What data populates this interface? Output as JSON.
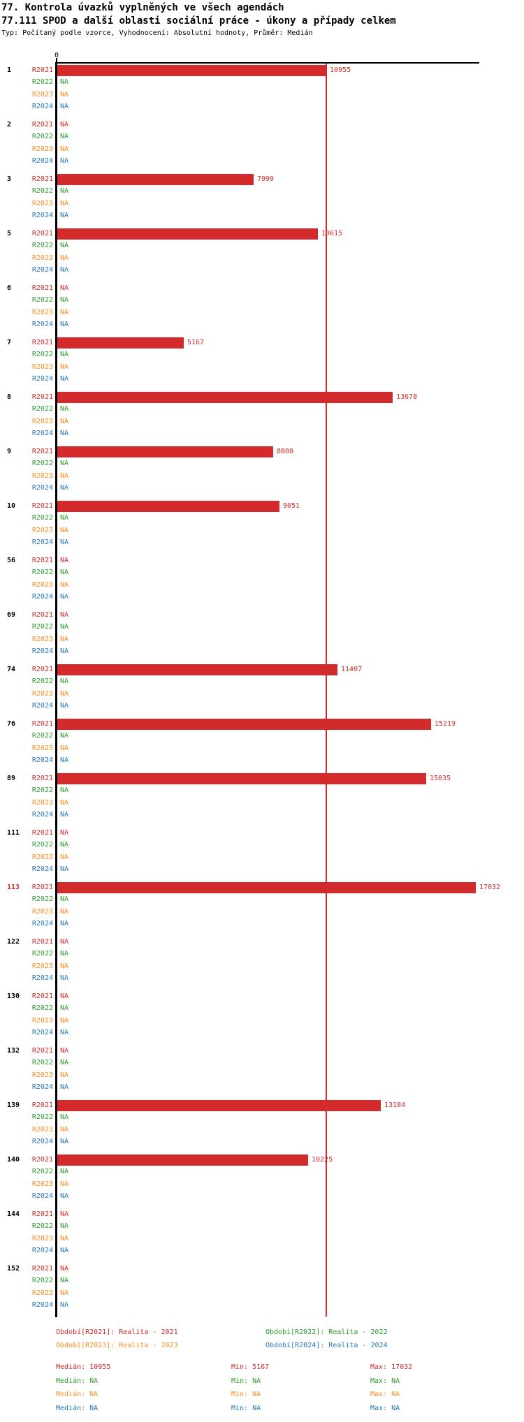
{
  "title1": "77. Kontrola úvazků vyplněných ve všech agendách",
  "title2": "77.111 SPOD a další oblasti sociální práce - úkony a případy celkem",
  "meta": "Typ: Počítaný podle vzorce, Vyhodnocení: Absolutní hodnoty, Průměr: Medián",
  "colors": {
    "R2021": "#d32b2b",
    "R2022": "#2d9e2d",
    "R2023": "#ff8c1e",
    "R2024": "#2878b8",
    "axis": "#000000",
    "median_line": "#d32b2b",
    "highlight_group_label": "#d32b2b"
  },
  "axis": {
    "zero_label": "0"
  },
  "chart_data": {
    "type": "bar",
    "orientation": "horizontal",
    "title": "77.111 SPOD a další oblasti sociální práce - úkony a případy celkem",
    "series_years": [
      "R2021",
      "R2022",
      "R2023",
      "R2024"
    ],
    "xlim": [
      0,
      17200
    ],
    "x_axis_ticks": [
      "0"
    ],
    "grid": false,
    "median_line_value": 10955,
    "na_text": "NA",
    "groups": [
      {
        "label": "1",
        "highlight": false,
        "R2021": 10955,
        "R2022": "NA",
        "R2023": "NA",
        "R2024": "NA"
      },
      {
        "label": "2",
        "highlight": false,
        "R2021": "NA",
        "R2022": "NA",
        "R2023": "NA",
        "R2024": "NA"
      },
      {
        "label": "3",
        "highlight": false,
        "R2021": 7999,
        "R2022": "NA",
        "R2023": "NA",
        "R2024": "NA"
      },
      {
        "label": "5",
        "highlight": false,
        "R2021": 10615,
        "R2022": "NA",
        "R2023": "NA",
        "R2024": "NA"
      },
      {
        "label": "6",
        "highlight": false,
        "R2021": "NA",
        "R2022": "NA",
        "R2023": "NA",
        "R2024": "NA"
      },
      {
        "label": "7",
        "highlight": false,
        "R2021": 5167,
        "R2022": "NA",
        "R2023": "NA",
        "R2024": "NA"
      },
      {
        "label": "8",
        "highlight": false,
        "R2021": 13678,
        "R2022": "NA",
        "R2023": "NA",
        "R2024": "NA"
      },
      {
        "label": "9",
        "highlight": false,
        "R2021": 8808,
        "R2022": "NA",
        "R2023": "NA",
        "R2024": "NA"
      },
      {
        "label": "10",
        "highlight": false,
        "R2021": 9051,
        "R2022": "NA",
        "R2023": "NA",
        "R2024": "NA"
      },
      {
        "label": "56",
        "highlight": false,
        "R2021": "NA",
        "R2022": "NA",
        "R2023": "NA",
        "R2024": "NA"
      },
      {
        "label": "69",
        "highlight": false,
        "R2021": "NA",
        "R2022": "NA",
        "R2023": "NA",
        "R2024": "NA"
      },
      {
        "label": "74",
        "highlight": false,
        "R2021": 11407,
        "R2022": "NA",
        "R2023": "NA",
        "R2024": "NA"
      },
      {
        "label": "76",
        "highlight": false,
        "R2021": 15219,
        "R2022": "NA",
        "R2023": "NA",
        "R2024": "NA"
      },
      {
        "label": "89",
        "highlight": false,
        "R2021": 15035,
        "R2022": "NA",
        "R2023": "NA",
        "R2024": "NA"
      },
      {
        "label": "111",
        "highlight": false,
        "R2021": "NA",
        "R2022": "NA",
        "R2023": "NA",
        "R2024": "NA"
      },
      {
        "label": "113",
        "highlight": true,
        "R2021": 17032,
        "R2022": "NA",
        "R2023": "NA",
        "R2024": "NA"
      },
      {
        "label": "122",
        "highlight": false,
        "R2021": "NA",
        "R2022": "NA",
        "R2023": "NA",
        "R2024": "NA"
      },
      {
        "label": "130",
        "highlight": false,
        "R2021": "NA",
        "R2022": "NA",
        "R2023": "NA",
        "R2024": "NA"
      },
      {
        "label": "132",
        "highlight": false,
        "R2021": "NA",
        "R2022": "NA",
        "R2023": "NA",
        "R2024": "NA"
      },
      {
        "label": "139",
        "highlight": false,
        "R2021": 13184,
        "R2022": "NA",
        "R2023": "NA",
        "R2024": "NA"
      },
      {
        "label": "140",
        "highlight": false,
        "R2021": 10225,
        "R2022": "NA",
        "R2023": "NA",
        "R2024": "NA"
      },
      {
        "label": "144",
        "highlight": false,
        "R2021": "NA",
        "R2022": "NA",
        "R2023": "NA",
        "R2024": "NA"
      },
      {
        "label": "152",
        "highlight": false,
        "R2021": "NA",
        "R2022": "NA",
        "R2023": "NA",
        "R2024": "NA"
      }
    ]
  },
  "legend": {
    "items": [
      {
        "year": "R2021",
        "label": "Období[R2021]: Realita - 2021"
      },
      {
        "year": "R2022",
        "label": "Období[R2022]: Realita - 2022"
      },
      {
        "year": "R2023",
        "label": "Období[R2023]: Realita - 2023"
      },
      {
        "year": "R2024",
        "label": "Období[R2024]: Realita - 2024"
      }
    ]
  },
  "stats": {
    "rows": [
      {
        "year": "R2021",
        "median": "Medián: 10955",
        "min": "Min: 5167",
        "max": "Max: 17032"
      },
      {
        "year": "R2022",
        "median": "Medián: NA",
        "min": "Min: NA",
        "max": "Max: NA"
      },
      {
        "year": "R2023",
        "median": "Medián: NA",
        "min": "Min: NA",
        "max": "Max: NA"
      },
      {
        "year": "R2024",
        "median": "Medián: NA",
        "min": "Min: NA",
        "max": "Max: NA"
      }
    ]
  }
}
